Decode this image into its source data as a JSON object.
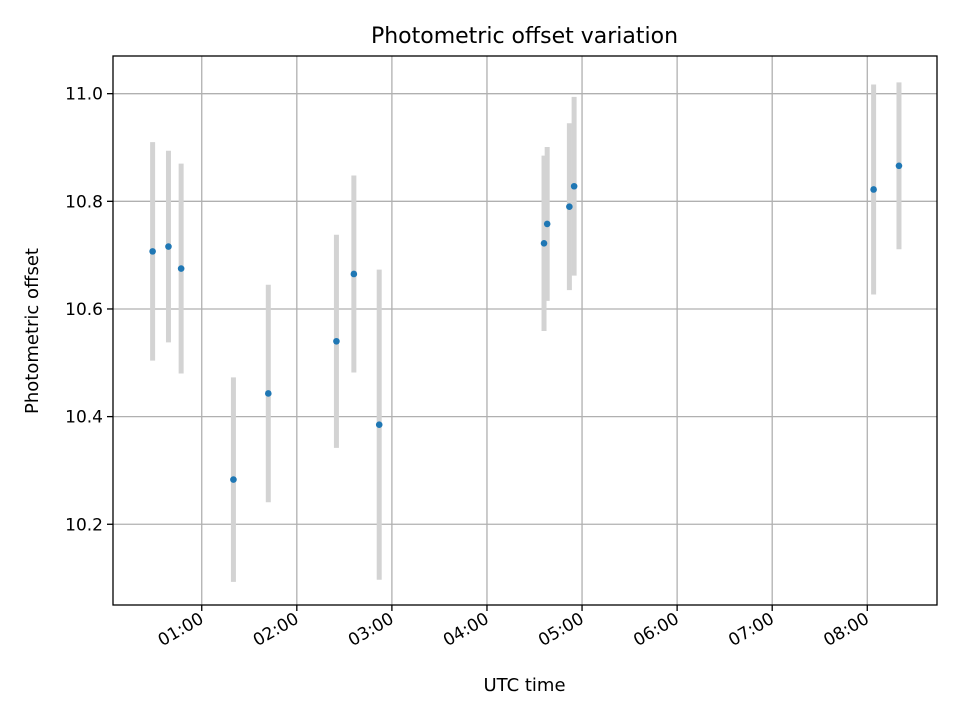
{
  "chart_data": {
    "type": "scatter",
    "title": "Photometric offset variation",
    "xlabel": "UTC time",
    "ylabel": "Photometric offset",
    "x_ticks": [
      "01:00",
      "02:00",
      "03:00",
      "04:00",
      "05:00",
      "06:00",
      "07:00",
      "08:00"
    ],
    "y_ticks": [
      10.2,
      10.4,
      10.6,
      10.8,
      11.0
    ],
    "y_tick_labels": [
      "10.2",
      "10.4",
      "10.6",
      "10.8",
      "11.0"
    ],
    "xlim": [
      "00:04",
      "08:44"
    ],
    "ylim": [
      10.05,
      11.07
    ],
    "grid": true,
    "series": [
      {
        "marker_color": "#1f77b4",
        "errorbar_color": "#d3d3d3",
        "points": [
          {
            "x": "00:29",
            "y": 10.707,
            "yerr": 0.203
          },
          {
            "x": "00:39",
            "y": 10.716,
            "yerr": 0.178
          },
          {
            "x": "00:47",
            "y": 10.675,
            "yerr": 0.195
          },
          {
            "x": "01:20",
            "y": 10.283,
            "yerr": 0.19
          },
          {
            "x": "01:42",
            "y": 10.443,
            "yerr": 0.202
          },
          {
            "x": "02:25",
            "y": 10.54,
            "yerr": 0.198
          },
          {
            "x": "02:36",
            "y": 10.665,
            "yerr": 0.183
          },
          {
            "x": "02:52",
            "y": 10.385,
            "yerr": 0.288
          },
          {
            "x": "04:36",
            "y": 10.722,
            "yerr": 0.163
          },
          {
            "x": "04:38",
            "y": 10.758,
            "yerr": 0.143
          },
          {
            "x": "04:52",
            "y": 10.79,
            "yerr": 0.155
          },
          {
            "x": "04:55",
            "y": 10.828,
            "yerr": 0.166
          },
          {
            "x": "08:04",
            "y": 10.822,
            "yerr": 0.195
          },
          {
            "x": "08:20",
            "y": 10.866,
            "yerr": 0.155
          }
        ]
      }
    ]
  }
}
